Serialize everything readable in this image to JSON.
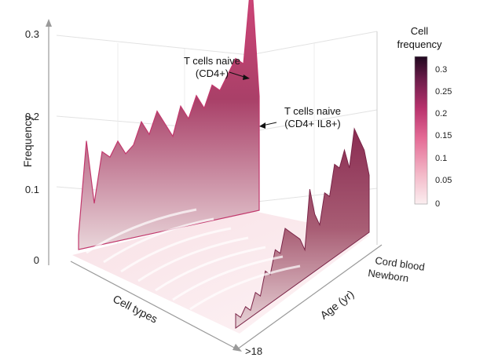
{
  "chart_data": {
    "type": "surface",
    "xlabel": "Cell types",
    "ylabel": "Frequency",
    "zlabel": "Age (yr)",
    "ylim": [
      0,
      0.33
    ],
    "y_ticks": [
      "0",
      "0.1",
      "0.2",
      "0.3"
    ],
    "age_ticks": [
      "Cord blood",
      "Newborn",
      ">18"
    ],
    "annotations": [
      {
        "lines": [
          "T cells naive",
          "(CD4+)"
        ]
      },
      {
        "lines": [
          "T cells naive",
          "(CD4+ IL8+)"
        ]
      }
    ],
    "colorbar": {
      "title_lines": [
        "Cell",
        "frequency"
      ],
      "ticks": [
        "0.3",
        "0.25",
        "0.2",
        "0.15",
        "0.1",
        "0.05",
        "0"
      ],
      "colors": [
        "#2b0b2a",
        "#7a1f4e",
        "#c43a72",
        "#ea6f98",
        "#f4b6c8",
        "#fbe6ea"
      ]
    },
    "back_ridge": [
      0.02,
      0.15,
      0.06,
      0.13,
      0.12,
      0.14,
      0.12,
      0.13,
      0.16,
      0.14,
      0.17,
      0.15,
      0.13,
      0.17,
      0.15,
      0.18,
      0.16,
      0.19,
      0.18,
      0.2,
      0.22,
      0.21,
      0.33,
      0.16
    ],
    "front_ridge": [
      0.02,
      0.01,
      0.02,
      0.01,
      0.03,
      0.02,
      0.05,
      0.04,
      0.07,
      0.06,
      0.09,
      0.08,
      0.07,
      0.06,
      0.04,
      0.12,
      0.08,
      0.06,
      0.1,
      0.09,
      0.13,
      0.12,
      0.14,
      0.11,
      0.16,
      0.14,
      0.12,
      0.08
    ]
  }
}
